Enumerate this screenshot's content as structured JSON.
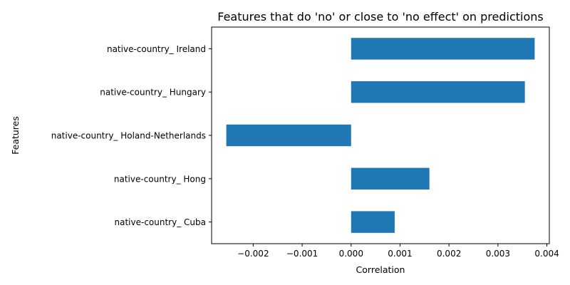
{
  "chart_data": {
    "type": "bar",
    "orientation": "horizontal",
    "title": "Features that do 'no' or close to 'no effect' on predictions",
    "xlabel": "Correlation",
    "ylabel": "Features",
    "categories": [
      "native-country_ Cuba",
      "native-country_ Hong",
      "native-country_ Holand-Netherlands",
      "native-country_ Hungary",
      "native-country_ Ireland"
    ],
    "values": [
      0.00089,
      0.0016,
      -0.00255,
      0.00355,
      0.00375
    ],
    "xlim": [
      -0.00285,
      0.00405
    ],
    "xticks": [
      -0.002,
      -0.001,
      0.0,
      0.001,
      0.002,
      0.003,
      0.004
    ],
    "xtick_labels": [
      "−0.002",
      "−0.001",
      "0.000",
      "0.001",
      "0.002",
      "0.003",
      "0.004"
    ],
    "bar_color": "#1f77b4",
    "grid": false,
    "legend": "none"
  }
}
